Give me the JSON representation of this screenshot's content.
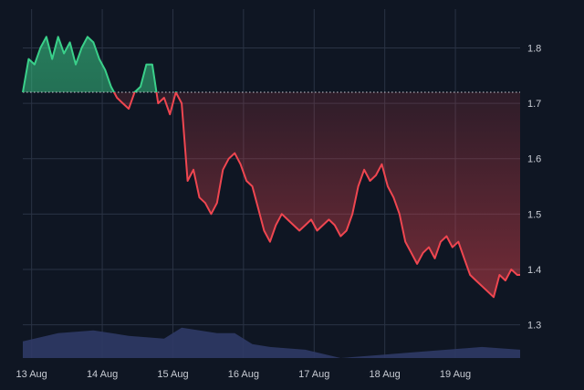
{
  "chart_data": {
    "type": "area",
    "subtype": "baseline",
    "title": "",
    "xlabel": "",
    "ylabel": "",
    "x_ticks": [
      "13 Aug",
      "14 Aug",
      "15 Aug",
      "16 Aug",
      "17 Aug",
      "18 Aug",
      "19 Aug"
    ],
    "y_ticks": [
      "1.3",
      "1.4",
      "1.5",
      "1.6",
      "1.7",
      "1.8"
    ],
    "ylim": [
      1.24,
      1.87
    ],
    "xlim": [
      "2023-08-12T21:00",
      "2023-08-19T22:00"
    ],
    "baseline_value": 1.72,
    "grid": true,
    "legend": "none",
    "colors": {
      "background": "#0f1623",
      "grid": "#2a3344",
      "above": "#3ad08a",
      "below": "#ef4650",
      "volume": "#2f3a66",
      "text": "#c8ccd4"
    },
    "price_series": {
      "x": [
        "2023-08-12T21:00",
        "2023-08-12T23:00",
        "2023-08-13T01:00",
        "2023-08-13T03:00",
        "2023-08-13T05:00",
        "2023-08-13T07:00",
        "2023-08-13T09:00",
        "2023-08-13T11:00",
        "2023-08-13T13:00",
        "2023-08-13T15:00",
        "2023-08-13T17:00",
        "2023-08-13T19:00",
        "2023-08-13T21:00",
        "2023-08-13T23:00",
        "2023-08-14T01:00",
        "2023-08-14T03:00",
        "2023-08-14T05:00",
        "2023-08-14T07:00",
        "2023-08-14T09:00",
        "2023-08-14T11:00",
        "2023-08-14T13:00",
        "2023-08-14T15:00",
        "2023-08-14T17:00",
        "2023-08-14T19:00",
        "2023-08-14T21:00",
        "2023-08-14T23:00",
        "2023-08-15T01:00",
        "2023-08-15T03:00",
        "2023-08-15T05:00",
        "2023-08-15T07:00",
        "2023-08-15T09:00",
        "2023-08-15T11:00",
        "2023-08-15T13:00",
        "2023-08-15T15:00",
        "2023-08-15T17:00",
        "2023-08-15T19:00",
        "2023-08-15T21:00",
        "2023-08-15T23:00",
        "2023-08-16T01:00",
        "2023-08-16T03:00",
        "2023-08-16T05:00",
        "2023-08-16T07:00",
        "2023-08-16T09:00",
        "2023-08-16T11:00",
        "2023-08-16T13:00",
        "2023-08-16T15:00",
        "2023-08-16T17:00",
        "2023-08-16T19:00",
        "2023-08-16T21:00",
        "2023-08-16T23:00",
        "2023-08-17T01:00",
        "2023-08-17T03:00",
        "2023-08-17T05:00",
        "2023-08-17T07:00",
        "2023-08-17T09:00",
        "2023-08-17T11:00",
        "2023-08-17T13:00",
        "2023-08-17T15:00",
        "2023-08-17T17:00",
        "2023-08-17T19:00",
        "2023-08-17T21:00",
        "2023-08-17T23:00",
        "2023-08-18T01:00",
        "2023-08-18T03:00",
        "2023-08-18T05:00",
        "2023-08-18T07:00",
        "2023-08-18T09:00",
        "2023-08-18T11:00",
        "2023-08-18T13:00",
        "2023-08-18T15:00",
        "2023-08-18T17:00",
        "2023-08-18T19:00",
        "2023-08-18T21:00",
        "2023-08-18T23:00",
        "2023-08-19T01:00",
        "2023-08-19T03:00",
        "2023-08-19T05:00",
        "2023-08-19T07:00",
        "2023-08-19T09:00",
        "2023-08-19T11:00",
        "2023-08-19T13:00",
        "2023-08-19T15:00",
        "2023-08-19T17:00",
        "2023-08-19T19:00",
        "2023-08-19T21:00",
        "2023-08-19T22:00"
      ],
      "values": [
        1.72,
        1.78,
        1.77,
        1.8,
        1.82,
        1.78,
        1.82,
        1.79,
        1.81,
        1.77,
        1.8,
        1.82,
        1.81,
        1.78,
        1.76,
        1.73,
        1.71,
        1.7,
        1.69,
        1.72,
        1.73,
        1.77,
        1.77,
        1.7,
        1.71,
        1.68,
        1.72,
        1.7,
        1.56,
        1.58,
        1.53,
        1.52,
        1.5,
        1.52,
        1.58,
        1.6,
        1.61,
        1.59,
        1.56,
        1.55,
        1.51,
        1.47,
        1.45,
        1.48,
        1.5,
        1.49,
        1.48,
        1.47,
        1.48,
        1.49,
        1.47,
        1.48,
        1.49,
        1.48,
        1.46,
        1.47,
        1.5,
        1.55,
        1.58,
        1.56,
        1.57,
        1.59,
        1.55,
        1.53,
        1.5,
        1.45,
        1.43,
        1.41,
        1.43,
        1.44,
        1.42,
        1.45,
        1.46,
        1.44,
        1.45,
        1.42,
        1.39,
        1.38,
        1.37,
        1.36,
        1.35,
        1.39,
        1.38,
        1.4,
        1.39,
        1.39
      ]
    },
    "volume_series": {
      "x": [
        "2023-08-12T21:00",
        "2023-08-13T09:00",
        "2023-08-13T21:00",
        "2023-08-14T09:00",
        "2023-08-14T21:00",
        "2023-08-15T03:00",
        "2023-08-15T09:00",
        "2023-08-15T15:00",
        "2023-08-15T21:00",
        "2023-08-16T03:00",
        "2023-08-16T09:00",
        "2023-08-16T21:00",
        "2023-08-17T09:00",
        "2023-08-17T21:00",
        "2023-08-18T09:00",
        "2023-08-18T21:00",
        "2023-08-19T09:00",
        "2023-08-19T22:00"
      ],
      "values": [
        1.27,
        1.285,
        1.29,
        1.28,
        1.275,
        1.295,
        1.29,
        1.285,
        1.285,
        1.265,
        1.26,
        1.255,
        1.24,
        1.245,
        1.25,
        1.255,
        1.26,
        1.255
      ]
    }
  }
}
